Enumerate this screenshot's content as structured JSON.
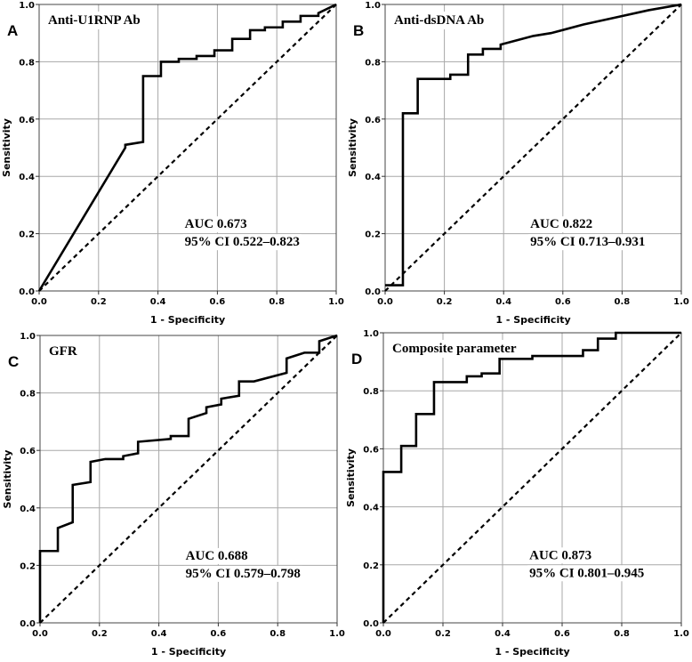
{
  "chart_data": [
    {
      "type": "line",
      "panel_letter": "A",
      "title": "Anti-U1RNP Ab",
      "xlabel": "1 - Specificity",
      "ylabel": "Sensitivity",
      "xlim": [
        0,
        1
      ],
      "ylim": [
        0,
        1
      ],
      "xticks": [
        "0.0",
        "0.2",
        "0.4",
        "0.6",
        "0.8",
        "1.0"
      ],
      "yticks": [
        "0.0",
        "0.2",
        "0.4",
        "0.6",
        "0.8",
        "1.0"
      ],
      "grid": true,
      "auc_label": "AUC 0.673",
      "ci_label": "95% CI 0.522–0.823",
      "series": [
        {
          "name": "ROC curve",
          "x": [
            0,
            0.29,
            0.29,
            0.35,
            0.35,
            0.41,
            0.41,
            0.47,
            0.47,
            0.53,
            0.53,
            0.59,
            0.59,
            0.65,
            0.65,
            0.71,
            0.71,
            0.76,
            0.76,
            0.82,
            0.82,
            0.88,
            0.88,
            0.94,
            0.94,
            1.0
          ],
          "y": [
            0,
            0.5,
            0.51,
            0.52,
            0.75,
            0.75,
            0.8,
            0.8,
            0.81,
            0.81,
            0.82,
            0.82,
            0.84,
            0.84,
            0.88,
            0.88,
            0.91,
            0.91,
            0.92,
            0.92,
            0.94,
            0.94,
            0.96,
            0.96,
            0.97,
            1.0
          ]
        },
        {
          "name": "Reference line",
          "x": [
            0,
            1
          ],
          "y": [
            0,
            1
          ]
        }
      ]
    },
    {
      "type": "line",
      "panel_letter": "B",
      "title": "Anti-dsDNA Ab",
      "xlabel": "1 - Specificity",
      "ylabel": "Sensitivity",
      "xlim": [
        0,
        1
      ],
      "ylim": [
        0,
        1
      ],
      "xticks": [
        "0.0",
        "0.2",
        "0.4",
        "0.6",
        "0.8",
        "1.0"
      ],
      "yticks": [
        "0.0",
        "0.2",
        "0.4",
        "0.6",
        "0.8",
        "1.0"
      ],
      "grid": true,
      "auc_label": "AUC 0.822",
      "ci_label": "95% CI 0.713–0.931",
      "series": [
        {
          "name": "ROC curve",
          "x": [
            0,
            0.06,
            0.06,
            0.11,
            0.11,
            0.22,
            0.22,
            0.28,
            0.28,
            0.33,
            0.33,
            0.39,
            0.39,
            0.5,
            0.56,
            0.67,
            0.78,
            0.89,
            1.0
          ],
          "y": [
            0.02,
            0.02,
            0.62,
            0.62,
            0.74,
            0.74,
            0.755,
            0.755,
            0.825,
            0.825,
            0.845,
            0.845,
            0.86,
            0.89,
            0.9,
            0.93,
            0.955,
            0.98,
            1.0
          ]
        },
        {
          "name": "Reference line",
          "x": [
            0,
            1
          ],
          "y": [
            0,
            1
          ]
        }
      ]
    },
    {
      "type": "line",
      "panel_letter": "C",
      "title": "GFR",
      "xlabel": "1 - Specificity",
      "ylabel": "Sensitivity",
      "xlim": [
        0,
        1
      ],
      "ylim": [
        0,
        1
      ],
      "xticks": [
        "0.0",
        "0.2",
        "0.4",
        "0.6",
        "0.8",
        "1.0"
      ],
      "yticks": [
        "0.0",
        "0.2",
        "0.4",
        "0.6",
        "0.8",
        "1.0"
      ],
      "grid": true,
      "auc_label": "AUC 0.688",
      "ci_label": "95% CI 0.579–0.798",
      "series": [
        {
          "name": "ROC curve",
          "x": [
            0,
            0,
            0.06,
            0.06,
            0.11,
            0.11,
            0.17,
            0.17,
            0.22,
            0.28,
            0.28,
            0.33,
            0.33,
            0.44,
            0.44,
            0.5,
            0.5,
            0.56,
            0.56,
            0.61,
            0.61,
            0.67,
            0.67,
            0.72,
            0.83,
            0.83,
            0.89,
            0.94,
            0.94,
            1.0
          ],
          "y": [
            0,
            0.25,
            0.25,
            0.33,
            0.35,
            0.48,
            0.49,
            0.56,
            0.57,
            0.57,
            0.58,
            0.59,
            0.63,
            0.64,
            0.65,
            0.65,
            0.71,
            0.73,
            0.75,
            0.76,
            0.78,
            0.79,
            0.84,
            0.84,
            0.87,
            0.92,
            0.94,
            0.94,
            0.98,
            1.0
          ]
        },
        {
          "name": "Reference line",
          "x": [
            0,
            1
          ],
          "y": [
            0,
            1
          ]
        }
      ]
    },
    {
      "type": "line",
      "panel_letter": "D",
      "title": "Composite parameter",
      "xlabel": "1 - Specificity",
      "ylabel": "Sensitivity",
      "xlim": [
        0,
        1
      ],
      "ylim": [
        0,
        1
      ],
      "xticks": [
        "0.0",
        "0.2",
        "0.4",
        "0.6",
        "0.8",
        "1.0"
      ],
      "yticks": [
        "0.0",
        "0.2",
        "0.4",
        "0.6",
        "0.8",
        "1.0"
      ],
      "grid": true,
      "auc_label": "AUC 0.873",
      "ci_label": "95% CI 0.801–0.945",
      "series": [
        {
          "name": "ROC curve",
          "x": [
            0,
            0,
            0.06,
            0.06,
            0.11,
            0.11,
            0.17,
            0.17,
            0.28,
            0.28,
            0.33,
            0.33,
            0.39,
            0.39,
            0.5,
            0.5,
            0.67,
            0.67,
            0.72,
            0.72,
            0.78,
            0.78,
            1.0
          ],
          "y": [
            0,
            0.52,
            0.52,
            0.61,
            0.61,
            0.72,
            0.72,
            0.83,
            0.83,
            0.85,
            0.85,
            0.86,
            0.86,
            0.91,
            0.91,
            0.92,
            0.92,
            0.94,
            0.94,
            0.98,
            0.98,
            1.0,
            1.0
          ]
        },
        {
          "name": "Reference line",
          "x": [
            0,
            1
          ],
          "y": [
            0,
            1
          ]
        }
      ]
    }
  ]
}
